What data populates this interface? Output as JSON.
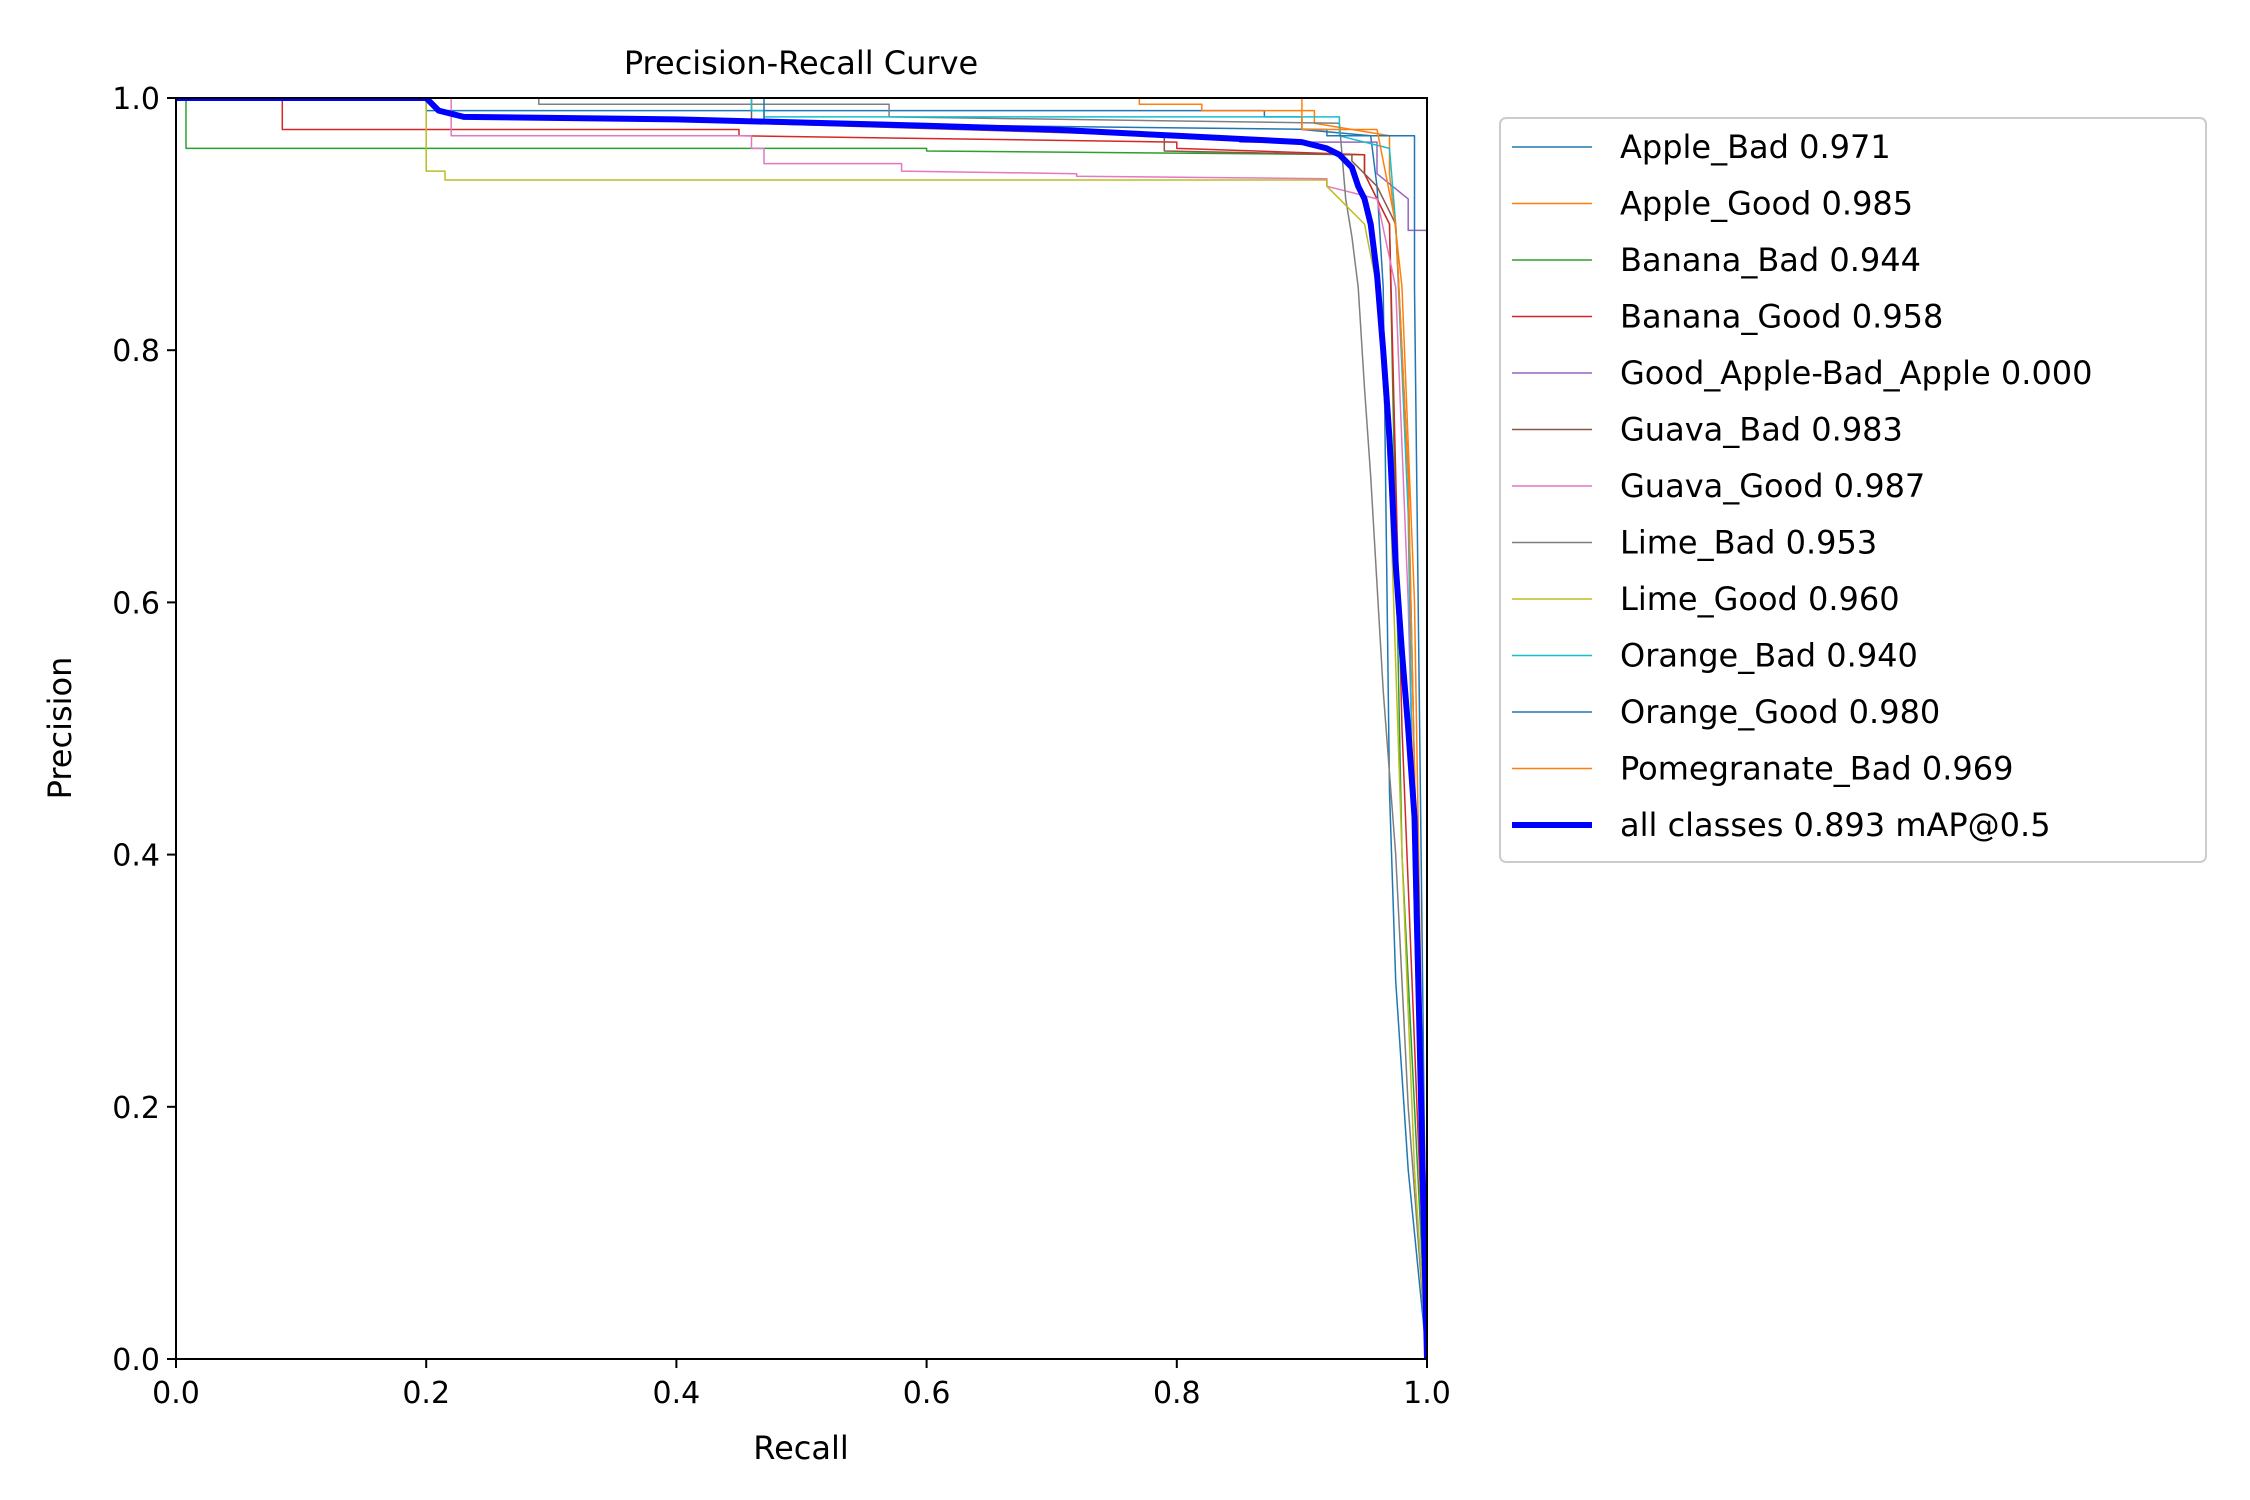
{
  "chart_data": {
    "type": "line",
    "title": "Precision-Recall Curve",
    "xlabel": "Recall",
    "ylabel": "Precision",
    "xlim": [
      0.0,
      1.0
    ],
    "ylim": [
      0.0,
      1.0
    ],
    "xticks": [
      "0.0",
      "0.2",
      "0.4",
      "0.6",
      "0.8",
      "1.0"
    ],
    "yticks": [
      "0.0",
      "0.2",
      "0.4",
      "0.6",
      "0.8",
      "1.0"
    ],
    "legend_position": "outside-right-top",
    "series": [
      {
        "name": "Apple_Bad",
        "label": "Apple_Bad 0.971",
        "color": "#1f77b4",
        "width": 1.5,
        "x": [
          0,
          0.2,
          0.2,
          0.87,
          0.87,
          0.9,
          0.9,
          0.955,
          0.96,
          0.965,
          0.97,
          0.975,
          0.985,
          1.0
        ],
        "y": [
          1.0,
          1.0,
          0.99,
          0.99,
          0.985,
          0.985,
          0.975,
          0.97,
          0.93,
          0.85,
          0.45,
          0.3,
          0.15,
          0.0
        ]
      },
      {
        "name": "Apple_Good",
        "label": "Apple_Good 0.985",
        "color": "#ff7f0e",
        "width": 1.5,
        "x": [
          0,
          0.74,
          0.74,
          0.77,
          0.77,
          0.82,
          0.82,
          0.91,
          0.91,
          0.97,
          0.97,
          0.98,
          0.99,
          1.0
        ],
        "y": [
          1.0,
          1.0,
          1.0,
          1.0,
          0.995,
          0.995,
          0.99,
          0.99,
          0.98,
          0.97,
          0.94,
          0.85,
          0.6,
          0.0
        ]
      },
      {
        "name": "Banana_Bad",
        "label": "Banana_Bad 0.944",
        "color": "#2ca02c",
        "width": 1.5,
        "x": [
          0,
          0.008,
          0.008,
          0.6,
          0.6,
          0.95,
          0.95,
          0.97,
          0.98,
          1.0
        ],
        "y": [
          1.0,
          1.0,
          0.96,
          0.96,
          0.958,
          0.955,
          0.94,
          0.9,
          0.4,
          0.0
        ]
      },
      {
        "name": "Banana_Good",
        "label": "Banana_Good 0.958",
        "color": "#d62728",
        "width": 1.5,
        "x": [
          0,
          0.085,
          0.085,
          0.45,
          0.45,
          0.8,
          0.8,
          0.95,
          0.95,
          0.97,
          0.98,
          1.0
        ],
        "y": [
          1.0,
          1.0,
          0.975,
          0.975,
          0.97,
          0.965,
          0.96,
          0.955,
          0.94,
          0.9,
          0.5,
          0.0
        ]
      },
      {
        "name": "Good_Apple-Bad_Apple",
        "label": "Good_Apple-Bad_Apple 0.000",
        "color": "#9467bd",
        "width": 1.5,
        "x": [
          0.85,
          0.96,
          0.96,
          0.985,
          0.985,
          1.0
        ],
        "y": [
          0.965,
          0.965,
          0.94,
          0.92,
          0.895,
          0.895
        ]
      },
      {
        "name": "Guava_Bad",
        "label": "Guava_Bad 0.983",
        "color": "#8c564b",
        "width": 1.5,
        "x": [
          0,
          0.46,
          0.46,
          0.79,
          0.79,
          0.94,
          0.94,
          0.96,
          0.975,
          0.985,
          1.0
        ],
        "y": [
          1.0,
          1.0,
          0.98,
          0.97,
          0.958,
          0.955,
          0.95,
          0.93,
          0.9,
          0.7,
          0.0
        ]
      },
      {
        "name": "Guava_Good",
        "label": "Guava_Good 0.987",
        "color": "#e377c2",
        "width": 1.5,
        "x": [
          0,
          0.22,
          0.22,
          0.46,
          0.46,
          0.47,
          0.47,
          0.58,
          0.58,
          0.72,
          0.72,
          0.92,
          0.92,
          0.96,
          0.975,
          0.985,
          1.0
        ],
        "y": [
          1.0,
          1.0,
          0.97,
          0.97,
          0.96,
          0.96,
          0.948,
          0.948,
          0.942,
          0.94,
          0.938,
          0.936,
          0.93,
          0.92,
          0.85,
          0.6,
          0.0
        ]
      },
      {
        "name": "Lime_Bad",
        "label": "Lime_Bad 0.953",
        "color": "#7f7f7f",
        "width": 1.5,
        "x": [
          0,
          0.29,
          0.29,
          0.57,
          0.57,
          0.93,
          0.935,
          0.94,
          0.945,
          0.95,
          0.955,
          0.965,
          0.975,
          0.985,
          1.0
        ],
        "y": [
          1.0,
          1.0,
          0.995,
          0.995,
          0.985,
          0.98,
          0.92,
          0.89,
          0.85,
          0.77,
          0.7,
          0.53,
          0.4,
          0.2,
          0.0
        ]
      },
      {
        "name": "Lime_Good",
        "label": "Lime_Good 0.960",
        "color": "#bcbd22",
        "width": 1.5,
        "x": [
          0,
          0.2,
          0.2,
          0.215,
          0.215,
          0.92,
          0.92,
          0.95,
          0.96,
          0.97,
          0.98,
          0.99,
          1.0
        ],
        "y": [
          1.0,
          1.0,
          0.942,
          0.942,
          0.935,
          0.935,
          0.93,
          0.9,
          0.85,
          0.7,
          0.4,
          0.15,
          0.0
        ]
      },
      {
        "name": "Orange_Bad",
        "label": "Orange_Bad 0.940",
        "color": "#17becf",
        "width": 1.5,
        "x": [
          0,
          0.46,
          0.46,
          0.47,
          0.47,
          0.93,
          0.93,
          0.97,
          0.975,
          0.985,
          0.99,
          1.0
        ],
        "y": [
          1.0,
          1.0,
          0.99,
          0.99,
          0.985,
          0.985,
          0.97,
          0.96,
          0.9,
          0.67,
          0.35,
          0.0
        ]
      },
      {
        "name": "Orange_Good",
        "label": "Orange_Good 0.980",
        "color": "#1f77b4",
        "width": 1.5,
        "x": [
          0,
          0.47,
          0.47,
          0.92,
          0.92,
          0.965,
          0.965,
          0.99,
          0.99,
          1.0
        ],
        "y": [
          1.0,
          1.0,
          0.98,
          0.975,
          0.97,
          0.97,
          0.97,
          0.97,
          0.85,
          0.0
        ]
      },
      {
        "name": "Pomegranate_Bad",
        "label": "Pomegranate_Bad 0.969",
        "color": "#ff7f0e",
        "width": 1.5,
        "x": [
          0,
          0.9,
          0.9,
          0.96,
          0.965,
          0.975,
          0.985,
          1.0
        ],
        "y": [
          1.0,
          1.0,
          0.975,
          0.975,
          0.95,
          0.9,
          0.7,
          0.0
        ]
      },
      {
        "name": "all classes",
        "label": "all classes 0.893 mAP@0.5",
        "color": "#0000ff",
        "width": 6,
        "x": [
          0,
          0.2,
          0.21,
          0.23,
          0.4,
          0.6,
          0.7,
          0.8,
          0.9,
          0.92,
          0.93,
          0.94,
          0.945,
          0.95,
          0.955,
          0.96,
          0.965,
          0.97,
          0.975,
          0.98,
          0.985,
          0.99,
          1.0
        ],
        "y": [
          1.0,
          1.0,
          0.99,
          0.985,
          0.983,
          0.978,
          0.975,
          0.97,
          0.965,
          0.96,
          0.955,
          0.945,
          0.93,
          0.92,
          0.9,
          0.86,
          0.8,
          0.73,
          0.63,
          0.56,
          0.5,
          0.43,
          0.0
        ]
      }
    ]
  }
}
